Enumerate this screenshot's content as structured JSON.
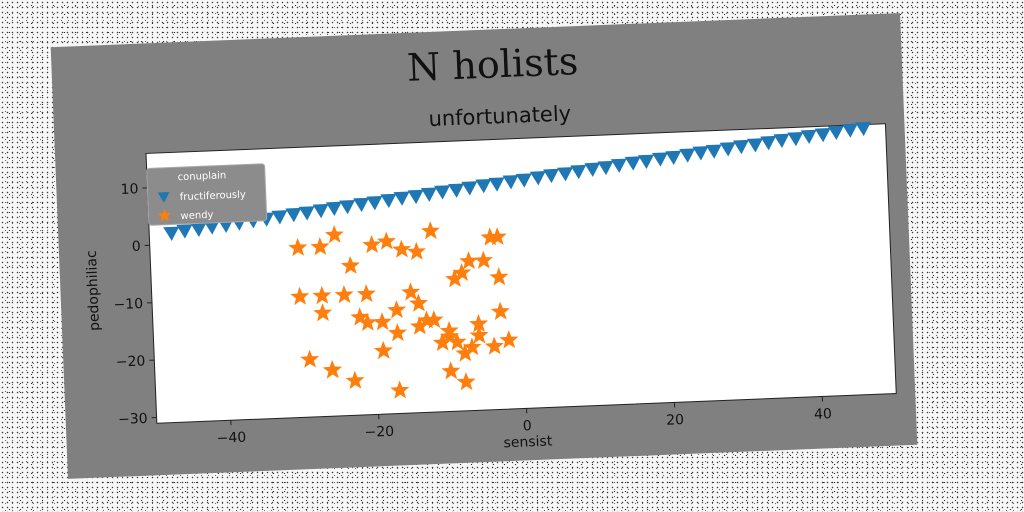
{
  "chart_data": {
    "type": "scatter",
    "title": "N holists",
    "subtitle": "unfortunately",
    "xlabel": "sensist",
    "ylabel": "pedophiliac",
    "xlim": [
      -50,
      50
    ],
    "ylim": [
      -31,
      16
    ],
    "xticks": [
      -40,
      -20,
      0,
      20,
      40
    ],
    "xtick_labels": [
      "−40",
      "−20",
      "0",
      "20",
      "40"
    ],
    "yticks": [
      -30,
      -20,
      -10,
      0,
      10
    ],
    "ytick_labels": [
      "−30",
      "−20",
      "−10",
      "0",
      "10"
    ],
    "grid": false,
    "legend": {
      "title": "conuplain",
      "position": "top-left"
    },
    "colors": {
      "figure_bg": "#808080",
      "plot_bg": "#ffffff"
    },
    "series": [
      {
        "name": "fructiferously",
        "marker": "triangle-down",
        "color": "#1f77b4",
        "x": [
          -47,
          -45.2,
          -43.3,
          -41.5,
          -39.6,
          -37.8,
          -35.9,
          -34.1,
          -32.3,
          -30.4,
          -28.6,
          -26.7,
          -24.9,
          -23.1,
          -21.2,
          -19.4,
          -17.5,
          -15.7,
          -13.8,
          -12,
          -10.2,
          -8.3,
          -6.5,
          -4.6,
          -2.8,
          -0.9,
          0.9,
          2.8,
          4.6,
          6.5,
          8.3,
          10.2,
          12,
          13.8,
          15.7,
          17.5,
          19.4,
          21.2,
          23.1,
          24.9,
          26.7,
          28.6,
          30.4,
          32.3,
          34.1,
          35.9,
          37.8,
          39.6,
          41.5,
          43.3,
          45.2,
          47
        ],
        "y": [
          2.0,
          2.3,
          2.5,
          2.8,
          3.0,
          3.3,
          3.6,
          3.8,
          4.1,
          4.4,
          4.6,
          4.9,
          5.2,
          5.4,
          5.7,
          5.9,
          6.2,
          6.5,
          6.7,
          7.0,
          7.3,
          7.5,
          7.8,
          8.1,
          8.3,
          8.6,
          8.8,
          9.1,
          9.4,
          9.6,
          9.9,
          10.2,
          10.4,
          10.7,
          11.0,
          11.2,
          11.5,
          11.7,
          12.0,
          12.3,
          12.5,
          12.8,
          13.1,
          13.3,
          13.6,
          13.9,
          14.1,
          14.4,
          14.6,
          14.9,
          15.2,
          15.4
        ]
      },
      {
        "name": "wendy",
        "marker": "star",
        "color": "#ff7f0e",
        "x": [
          -30,
          -27,
          -25,
          -20,
          -18,
          -16,
          -14,
          -12,
          -4,
          -3,
          -23,
          -7,
          -5,
          -8,
          -30,
          -27,
          -24,
          -21,
          -19,
          -15,
          -13,
          -3,
          -27,
          -22,
          -17,
          -14,
          -12,
          -3,
          -6,
          -17,
          -10,
          -9,
          -7,
          -2,
          -29,
          -26,
          -19,
          -11,
          -8,
          -4,
          -26,
          -23,
          -10,
          -17,
          -8,
          -21,
          -14,
          -10,
          -6,
          -9
        ],
        "y": [
          -1.5,
          -1.5,
          0.5,
          -1.5,
          -1,
          -2.5,
          -3,
          0.5,
          -1,
          -1,
          -5,
          -5,
          -5,
          -7,
          -10,
          -10,
          -10,
          -10,
          -15,
          -10,
          -15,
          -8,
          -13,
          -14,
          -13,
          -12,
          -15,
          -14,
          -16,
          -17,
          -18,
          -19,
          -20,
          -19,
          -21,
          -23,
          -20,
          -19,
          -21,
          -20,
          -23,
          -25,
          -24,
          -27,
          -26,
          -15,
          -16,
          -17,
          -18,
          -8
        ]
      }
    ]
  }
}
